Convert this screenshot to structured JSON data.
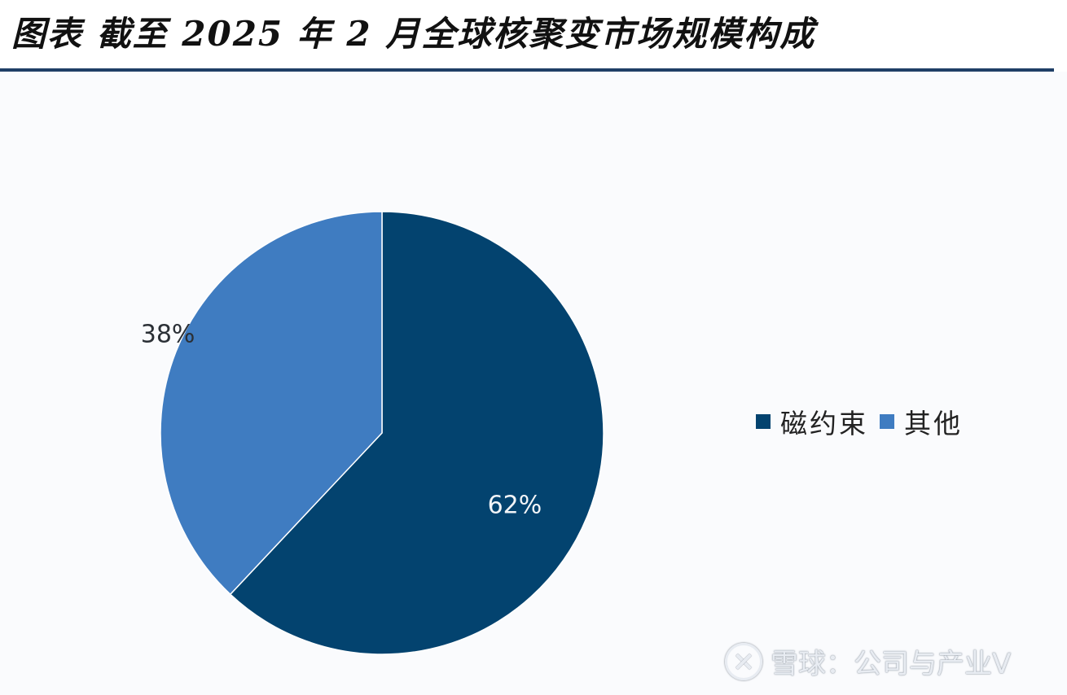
{
  "header": {
    "title": "图表  截至 2025 年 2 月全球核聚变市场规模构成"
  },
  "chart_data": {
    "type": "pie",
    "title": "图表  截至 2025 年 2 月全球核聚变市场规模构成",
    "slices": [
      {
        "label": "磁约束",
        "value": 62,
        "display": "62%",
        "color": "#03436f",
        "label_color": "#f2f4f7"
      },
      {
        "label": "其他",
        "value": 38,
        "display": "38%",
        "color": "#3f7cc1",
        "label_color": "#2b3036"
      }
    ],
    "start_angle_deg": 0,
    "direction": "clockwise",
    "legend_position": "right"
  },
  "watermark": {
    "text": "雪球：公司与产业V"
  }
}
